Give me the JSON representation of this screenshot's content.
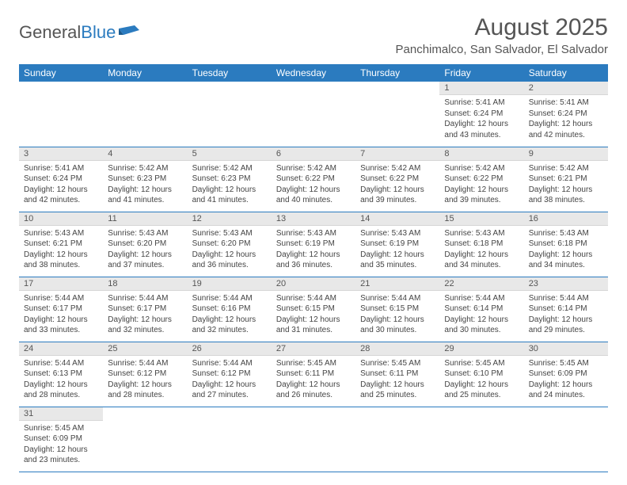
{
  "brand": {
    "part1": "General",
    "part2": "Blue"
  },
  "title": "August 2025",
  "location": "Panchimalco, San Salvador, El Salvador",
  "colors": {
    "header_bg": "#2b7bbf",
    "header_fg": "#ffffff",
    "daynum_bg": "#e8e8e8",
    "row_border": "#2b7bbf",
    "text": "#444444"
  },
  "weekdays": [
    "Sunday",
    "Monday",
    "Tuesday",
    "Wednesday",
    "Thursday",
    "Friday",
    "Saturday"
  ],
  "weeks": [
    [
      {
        "day": "",
        "lines": []
      },
      {
        "day": "",
        "lines": []
      },
      {
        "day": "",
        "lines": []
      },
      {
        "day": "",
        "lines": []
      },
      {
        "day": "",
        "lines": []
      },
      {
        "day": "1",
        "lines": [
          "Sunrise: 5:41 AM",
          "Sunset: 6:24 PM",
          "Daylight: 12 hours and 43 minutes."
        ]
      },
      {
        "day": "2",
        "lines": [
          "Sunrise: 5:41 AM",
          "Sunset: 6:24 PM",
          "Daylight: 12 hours and 42 minutes."
        ]
      }
    ],
    [
      {
        "day": "3",
        "lines": [
          "Sunrise: 5:41 AM",
          "Sunset: 6:24 PM",
          "Daylight: 12 hours and 42 minutes."
        ]
      },
      {
        "day": "4",
        "lines": [
          "Sunrise: 5:42 AM",
          "Sunset: 6:23 PM",
          "Daylight: 12 hours and 41 minutes."
        ]
      },
      {
        "day": "5",
        "lines": [
          "Sunrise: 5:42 AM",
          "Sunset: 6:23 PM",
          "Daylight: 12 hours and 41 minutes."
        ]
      },
      {
        "day": "6",
        "lines": [
          "Sunrise: 5:42 AM",
          "Sunset: 6:22 PM",
          "Daylight: 12 hours and 40 minutes."
        ]
      },
      {
        "day": "7",
        "lines": [
          "Sunrise: 5:42 AM",
          "Sunset: 6:22 PM",
          "Daylight: 12 hours and 39 minutes."
        ]
      },
      {
        "day": "8",
        "lines": [
          "Sunrise: 5:42 AM",
          "Sunset: 6:22 PM",
          "Daylight: 12 hours and 39 minutes."
        ]
      },
      {
        "day": "9",
        "lines": [
          "Sunrise: 5:42 AM",
          "Sunset: 6:21 PM",
          "Daylight: 12 hours and 38 minutes."
        ]
      }
    ],
    [
      {
        "day": "10",
        "lines": [
          "Sunrise: 5:43 AM",
          "Sunset: 6:21 PM",
          "Daylight: 12 hours and 38 minutes."
        ]
      },
      {
        "day": "11",
        "lines": [
          "Sunrise: 5:43 AM",
          "Sunset: 6:20 PM",
          "Daylight: 12 hours and 37 minutes."
        ]
      },
      {
        "day": "12",
        "lines": [
          "Sunrise: 5:43 AM",
          "Sunset: 6:20 PM",
          "Daylight: 12 hours and 36 minutes."
        ]
      },
      {
        "day": "13",
        "lines": [
          "Sunrise: 5:43 AM",
          "Sunset: 6:19 PM",
          "Daylight: 12 hours and 36 minutes."
        ]
      },
      {
        "day": "14",
        "lines": [
          "Sunrise: 5:43 AM",
          "Sunset: 6:19 PM",
          "Daylight: 12 hours and 35 minutes."
        ]
      },
      {
        "day": "15",
        "lines": [
          "Sunrise: 5:43 AM",
          "Sunset: 6:18 PM",
          "Daylight: 12 hours and 34 minutes."
        ]
      },
      {
        "day": "16",
        "lines": [
          "Sunrise: 5:43 AM",
          "Sunset: 6:18 PM",
          "Daylight: 12 hours and 34 minutes."
        ]
      }
    ],
    [
      {
        "day": "17",
        "lines": [
          "Sunrise: 5:44 AM",
          "Sunset: 6:17 PM",
          "Daylight: 12 hours and 33 minutes."
        ]
      },
      {
        "day": "18",
        "lines": [
          "Sunrise: 5:44 AM",
          "Sunset: 6:17 PM",
          "Daylight: 12 hours and 32 minutes."
        ]
      },
      {
        "day": "19",
        "lines": [
          "Sunrise: 5:44 AM",
          "Sunset: 6:16 PM",
          "Daylight: 12 hours and 32 minutes."
        ]
      },
      {
        "day": "20",
        "lines": [
          "Sunrise: 5:44 AM",
          "Sunset: 6:15 PM",
          "Daylight: 12 hours and 31 minutes."
        ]
      },
      {
        "day": "21",
        "lines": [
          "Sunrise: 5:44 AM",
          "Sunset: 6:15 PM",
          "Daylight: 12 hours and 30 minutes."
        ]
      },
      {
        "day": "22",
        "lines": [
          "Sunrise: 5:44 AM",
          "Sunset: 6:14 PM",
          "Daylight: 12 hours and 30 minutes."
        ]
      },
      {
        "day": "23",
        "lines": [
          "Sunrise: 5:44 AM",
          "Sunset: 6:14 PM",
          "Daylight: 12 hours and 29 minutes."
        ]
      }
    ],
    [
      {
        "day": "24",
        "lines": [
          "Sunrise: 5:44 AM",
          "Sunset: 6:13 PM",
          "Daylight: 12 hours and 28 minutes."
        ]
      },
      {
        "day": "25",
        "lines": [
          "Sunrise: 5:44 AM",
          "Sunset: 6:12 PM",
          "Daylight: 12 hours and 28 minutes."
        ]
      },
      {
        "day": "26",
        "lines": [
          "Sunrise: 5:44 AM",
          "Sunset: 6:12 PM",
          "Daylight: 12 hours and 27 minutes."
        ]
      },
      {
        "day": "27",
        "lines": [
          "Sunrise: 5:45 AM",
          "Sunset: 6:11 PM",
          "Daylight: 12 hours and 26 minutes."
        ]
      },
      {
        "day": "28",
        "lines": [
          "Sunrise: 5:45 AM",
          "Sunset: 6:11 PM",
          "Daylight: 12 hours and 25 minutes."
        ]
      },
      {
        "day": "29",
        "lines": [
          "Sunrise: 5:45 AM",
          "Sunset: 6:10 PM",
          "Daylight: 12 hours and 25 minutes."
        ]
      },
      {
        "day": "30",
        "lines": [
          "Sunrise: 5:45 AM",
          "Sunset: 6:09 PM",
          "Daylight: 12 hours and 24 minutes."
        ]
      }
    ],
    [
      {
        "day": "31",
        "lines": [
          "Sunrise: 5:45 AM",
          "Sunset: 6:09 PM",
          "Daylight: 12 hours and 23 minutes."
        ]
      },
      {
        "day": "",
        "lines": []
      },
      {
        "day": "",
        "lines": []
      },
      {
        "day": "",
        "lines": []
      },
      {
        "day": "",
        "lines": []
      },
      {
        "day": "",
        "lines": []
      },
      {
        "day": "",
        "lines": []
      }
    ]
  ]
}
